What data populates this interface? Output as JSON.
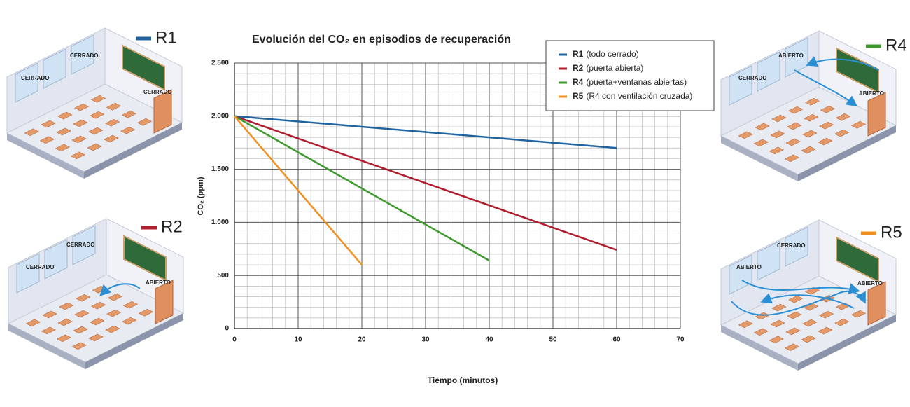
{
  "chart_data": {
    "type": "line",
    "title": "Evolución del CO₂ en episodios de recuperación",
    "xlabel": "Tiempo (minutos)",
    "ylabel": "CO₂ (ppm)",
    "xlim": [
      0,
      70
    ],
    "xticks": [
      0,
      10,
      20,
      30,
      40,
      50,
      60,
      70
    ],
    "ylim": [
      0,
      2500
    ],
    "yticks": [
      0,
      500,
      {
        "value": 1000,
        "label": "1.000"
      },
      {
        "value": 1500,
        "label": "1.500"
      },
      {
        "value": 2000,
        "label": "2.000"
      },
      {
        "value": 2500,
        "label": "2.500"
      }
    ],
    "grid": true,
    "minor_divisions": 5,
    "legend": "upper right",
    "series": [
      {
        "name": "R1",
        "description": "(todo cerrado)",
        "color": "#1f64a0",
        "x": [
          0,
          60
        ],
        "values": [
          2000,
          1700
        ]
      },
      {
        "name": "R2",
        "description": "(puerta abierta)",
        "color": "#b01d2e",
        "x": [
          0,
          60
        ],
        "values": [
          2000,
          740
        ]
      },
      {
        "name": "R4",
        "description": "(puerta+ventanas abiertas)",
        "color": "#3f9a2e",
        "x": [
          0,
          40
        ],
        "values": [
          2000,
          640
        ]
      },
      {
        "name": "R5",
        "description": "(R4 con ventilación cruzada)",
        "color": "#f0901e",
        "x": [
          0,
          20
        ],
        "values": [
          2000,
          600
        ]
      }
    ]
  },
  "illustrations": [
    {
      "label": "R1",
      "tags": [
        "CERRADO",
        "CERRADO",
        "CERRADO"
      ]
    },
    {
      "label": "R2",
      "tags": [
        "CERRADO",
        "CERRADO",
        "ABIERTO"
      ]
    },
    {
      "label": "R4",
      "tags": [
        "ABIERTO",
        "CERRADO",
        "ABIERTO"
      ]
    },
    {
      "label": "R5",
      "tags": [
        "CERRADO",
        "ABIERTO",
        "ABIERTO"
      ]
    }
  ]
}
